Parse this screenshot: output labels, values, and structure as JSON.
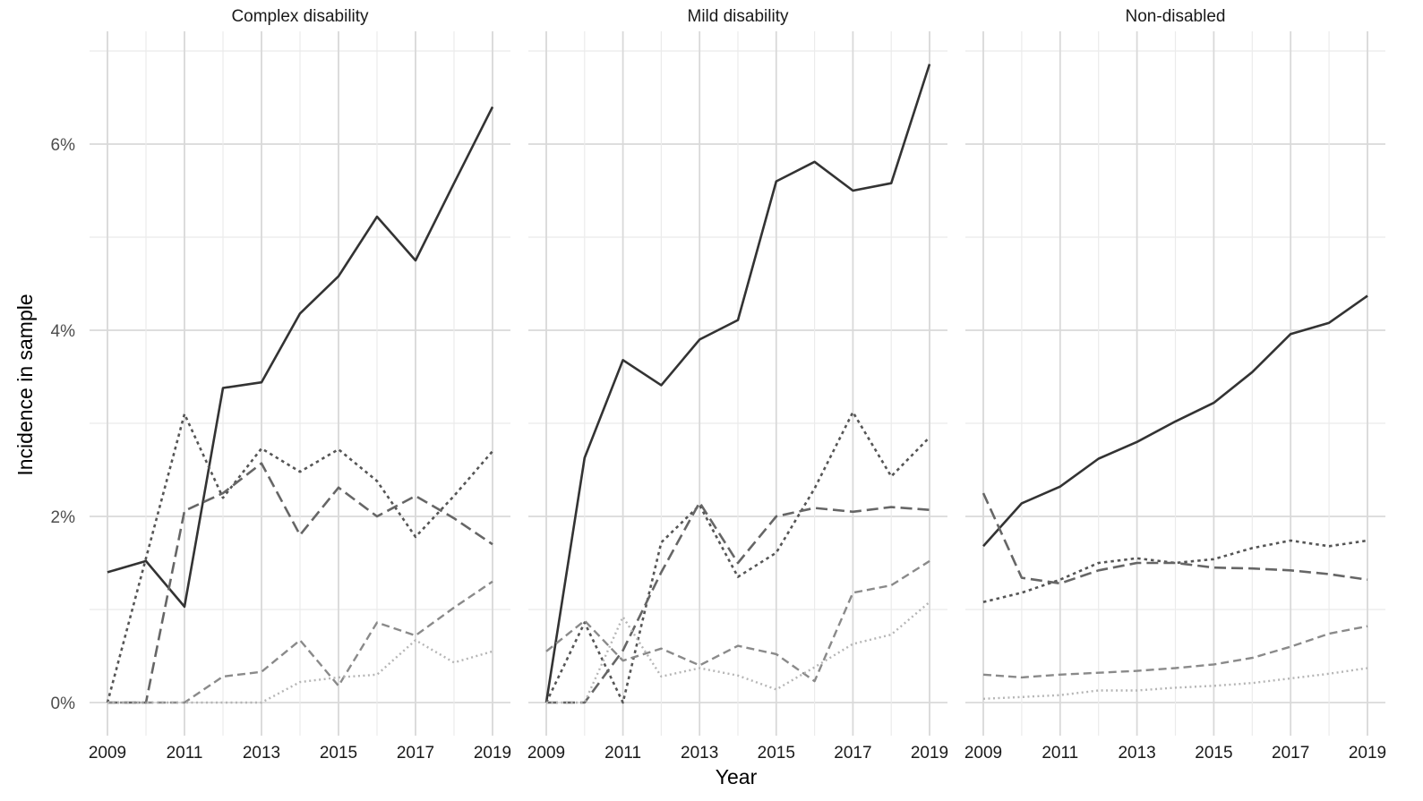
{
  "chart_data": {
    "type": "line",
    "ylabel": "Incidence in sample",
    "xlabel": "Year",
    "x": [
      2009,
      2010,
      2011,
      2012,
      2013,
      2014,
      2015,
      2016,
      2017,
      2018,
      2019
    ],
    "x_ticks": [
      "2009",
      "2011",
      "2013",
      "2015",
      "2017",
      "2019"
    ],
    "y_ticks": [
      "0%",
      "2%",
      "4%",
      "6%"
    ],
    "ylim": [
      -0.35,
      7.35
    ],
    "grid": true,
    "legend": "none",
    "facets": [
      {
        "title": "Complex disability",
        "series": [
          {
            "style": "solid",
            "color": "#333333",
            "values": [
              1.4,
              1.52,
              1.03,
              3.38,
              3.44,
              4.18,
              4.58,
              5.22,
              4.75,
              5.58,
              6.4
            ]
          },
          {
            "style": "short-dash",
            "color": "#555555",
            "values": [
              0.0,
              1.55,
              3.1,
              2.2,
              2.73,
              2.48,
              2.72,
              2.38,
              1.78,
              2.22,
              2.7
            ]
          },
          {
            "style": "long-dash",
            "color": "#666666",
            "values": [
              0.0,
              0.0,
              2.06,
              2.25,
              2.57,
              1.8,
              2.31,
              2.0,
              2.22,
              1.98,
              1.7
            ]
          },
          {
            "style": "dash",
            "color": "#8a8a8a",
            "values": [
              0.0,
              0.0,
              0.0,
              0.28,
              0.33,
              0.67,
              0.18,
              0.86,
              0.72,
              1.02,
              1.3
            ]
          },
          {
            "style": "dot",
            "color": "#b5b5b5",
            "values": [
              0.0,
              0.0,
              0.0,
              0.0,
              0.0,
              0.22,
              0.27,
              0.3,
              0.67,
              0.43,
              0.55
            ]
          }
        ]
      },
      {
        "title": "Mild disability",
        "series": [
          {
            "style": "solid",
            "color": "#333333",
            "values": [
              0.0,
              2.63,
              3.68,
              3.41,
              3.9,
              4.11,
              5.6,
              5.81,
              5.5,
              5.58,
              6.86
            ]
          },
          {
            "style": "short-dash",
            "color": "#555555",
            "values": [
              0.0,
              0.86,
              0.0,
              1.72,
              2.12,
              1.35,
              1.61,
              2.3,
              3.12,
              2.43,
              2.85
            ]
          },
          {
            "style": "long-dash",
            "color": "#666666",
            "values": [
              0.0,
              0.0,
              0.56,
              1.4,
              2.15,
              1.5,
              2.0,
              2.09,
              2.05,
              2.1,
              2.07
            ]
          },
          {
            "style": "dash",
            "color": "#8a8a8a",
            "values": [
              0.55,
              0.88,
              0.45,
              0.58,
              0.4,
              0.61,
              0.52,
              0.23,
              1.18,
              1.26,
              1.52
            ]
          },
          {
            "style": "dot",
            "color": "#b5b5b5",
            "values": [
              0.0,
              0.0,
              0.92,
              0.28,
              0.37,
              0.29,
              0.14,
              0.38,
              0.63,
              0.73,
              1.08
            ]
          }
        ]
      },
      {
        "title": "Non-disabled",
        "series": [
          {
            "style": "solid",
            "color": "#333333",
            "values": [
              1.68,
              2.14,
              2.32,
              2.62,
              2.8,
              3.02,
              3.22,
              3.55,
              3.96,
              4.08,
              4.37
            ]
          },
          {
            "style": "short-dash",
            "color": "#555555",
            "values": [
              1.08,
              1.18,
              1.32,
              1.5,
              1.55,
              1.5,
              1.54,
              1.66,
              1.74,
              1.68,
              1.74
            ]
          },
          {
            "style": "long-dash",
            "color": "#666666",
            "values": [
              2.25,
              1.34,
              1.28,
              1.42,
              1.5,
              1.5,
              1.45,
              1.44,
              1.42,
              1.38,
              1.32
            ]
          },
          {
            "style": "dash",
            "color": "#8a8a8a",
            "values": [
              0.3,
              0.27,
              0.3,
              0.32,
              0.34,
              0.37,
              0.41,
              0.48,
              0.6,
              0.74,
              0.82
            ]
          },
          {
            "style": "dot",
            "color": "#b5b5b5",
            "values": [
              0.04,
              0.06,
              0.08,
              0.13,
              0.13,
              0.16,
              0.18,
              0.21,
              0.26,
              0.31,
              0.37
            ]
          }
        ]
      }
    ]
  }
}
